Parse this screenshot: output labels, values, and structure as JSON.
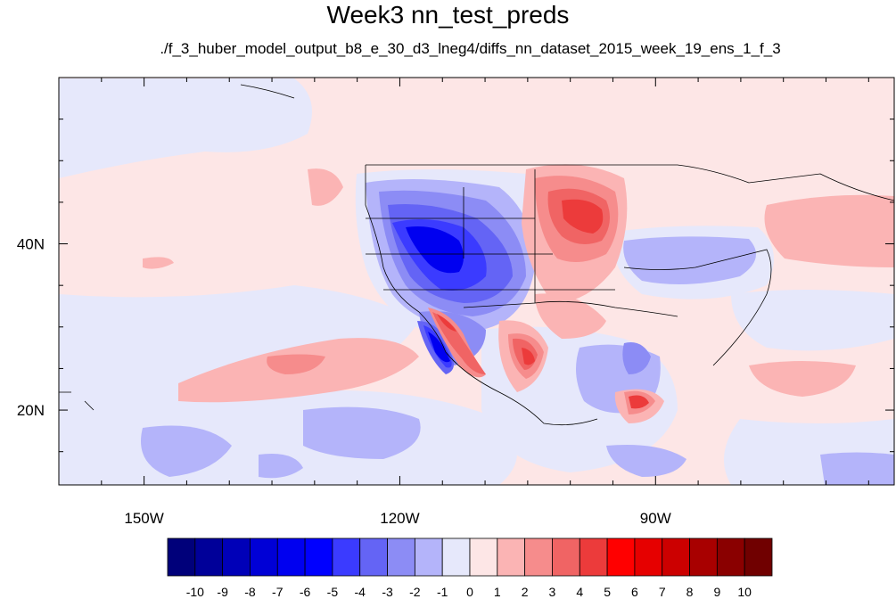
{
  "title": "Week3 nn_test_preds",
  "subtitle": "./f_3_huber_model_output_b8_e_30_d3_lneg4/diffs_nn_dataset_2015_week_19_ens_1_f_3",
  "map": {
    "lon_range": [
      -160,
      -62
    ],
    "lat_range": [
      11,
      60
    ],
    "lon_ticks": [
      {
        "value": -150,
        "label": "150W"
      },
      {
        "value": -120,
        "label": "120W"
      },
      {
        "value": -90,
        "label": "90W"
      }
    ],
    "lat_ticks": [
      {
        "value": 40,
        "label": "40N"
      },
      {
        "value": 20,
        "label": "20N"
      }
    ],
    "background_color": "#fde6e6"
  },
  "colorbar": {
    "labels": [
      "-10",
      "-9",
      "-8",
      "-7",
      "-6",
      "-5",
      "-4",
      "-3",
      "-2",
      "-1",
      "0",
      "1",
      "2",
      "3",
      "4",
      "5",
      "6",
      "7",
      "8",
      "9",
      "10"
    ],
    "colors": [
      "#00007a",
      "#000099",
      "#0000b8",
      "#0000d6",
      "#0000f0",
      "#0000ff",
      "#3b3bff",
      "#6464f5",
      "#8c8cf5",
      "#b4b4fa",
      "#e6e8fb",
      "#fde6e6",
      "#fbb4b4",
      "#f68c8c",
      "#f06464",
      "#ec3b3b",
      "#ff0000",
      "#e60000",
      "#cc0000",
      "#a80000",
      "#8a0000",
      "#700000"
    ]
  }
}
